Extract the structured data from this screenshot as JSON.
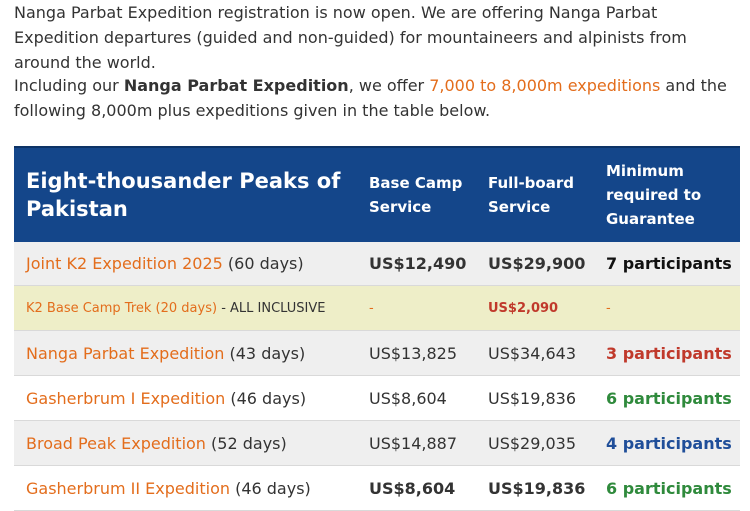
{
  "intro": {
    "text": "Nanga Parbat Expedition registration is now open. We are offering Nanga Parbat Expedition departures (guided and non-guided) for mountaineers and alpinists from around the world."
  },
  "second": {
    "prefix": "Including our ",
    "bold_name": "Nanga Parbat Expedition",
    "middle": ", we offer ",
    "link": "7,000 to 8,000m expeditions",
    "suffix": " and the following 8,000m plus expeditions given in the table below."
  },
  "table": {
    "headers": {
      "peak": "Eight-thousander Peaks of Pakistan",
      "base": "Base Camp Service",
      "full": "Full-board Service",
      "min": "Minimum required to Guarantee"
    },
    "rows": [
      {
        "name": "Joint K2 Expedition 2025",
        "days": " (60 days)",
        "base": "US$12,490",
        "full": "US$29,900",
        "min": "7 participants"
      },
      {
        "name": "K2 Base Camp Trek (20 days)",
        "days": " - ALL INCLUSIVE",
        "base": "-",
        "full": "US$2,090",
        "min": "-"
      },
      {
        "name": "Nanga Parbat Expedition",
        "days": " (43 days)",
        "base": "US$13,825",
        "full": "US$34,643",
        "min": "3 participants"
      },
      {
        "name": "Gasherbrum I Expedition",
        "days": " (46 days)",
        "base": "US$8,604",
        "full": "US$19,836",
        "min": "6 participants"
      },
      {
        "name": "Broad Peak Expedition",
        "days": " (52 days)",
        "base": "US$14,887",
        "full": "US$29,035",
        "min": "4 participants"
      },
      {
        "name": "Gasherbrum II Expedition",
        "days": " (46 days)",
        "base": "US$8,604",
        "full": "US$19,836",
        "min": "6 participants"
      }
    ]
  },
  "colors": {
    "link_orange": "#e36d1c",
    "header_blue": "#14468a",
    "highlight_yellow": "#eeeec8",
    "red": "#c0392b",
    "green": "#2f8a3c",
    "blue": "#1f4e99"
  }
}
